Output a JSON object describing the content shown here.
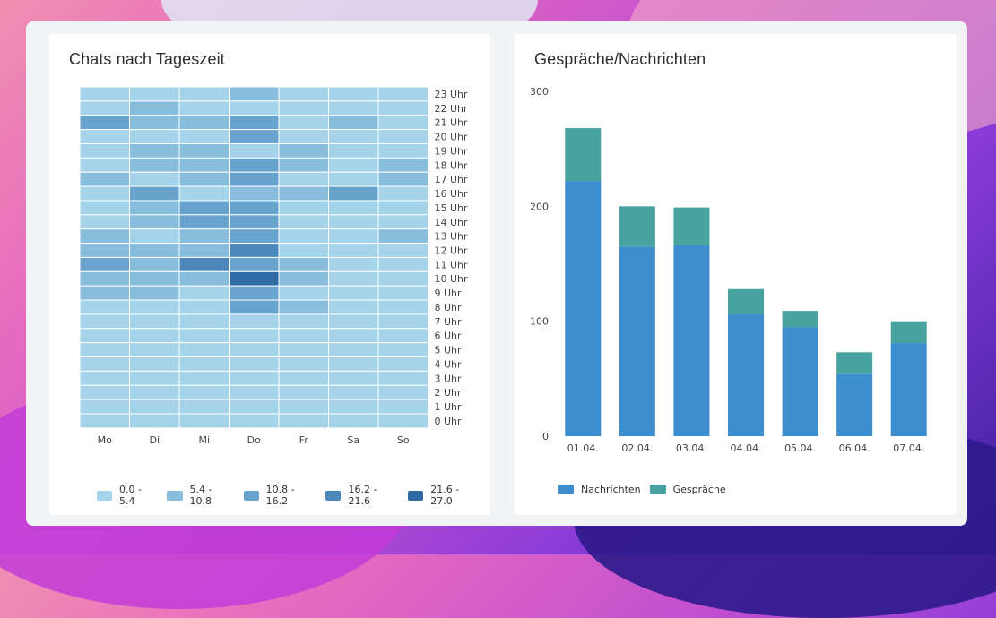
{
  "heatmap": {
    "title": "Chats nach Tageszeit",
    "days": [
      "Mo",
      "Di",
      "Mi",
      "Do",
      "Fr",
      "Sa",
      "So"
    ],
    "hours": [
      "23 Uhr",
      "22 Uhr",
      "21 Uhr",
      "20 Uhr",
      "19 Uhr",
      "18 Uhr",
      "17 Uhr",
      "16 Uhr",
      "15 Uhr",
      "14 Uhr",
      "13 Uhr",
      "12 Uhr",
      "11 Uhr",
      "10 Uhr",
      "9 Uhr",
      "8 Uhr",
      "7 Uhr",
      "6 Uhr",
      "5 Uhr",
      "4 Uhr",
      "3 Uhr",
      "2 Uhr",
      "1 Uhr",
      "0 Uhr"
    ],
    "legend": [
      {
        "label": "0.0 - 5.4",
        "color": "#a5d4ea"
      },
      {
        "label": "5.4 - 10.8",
        "color": "#88bddc"
      },
      {
        "label": "10.8 - 16.2",
        "color": "#67a3cc"
      },
      {
        "label": "16.2 - 21.6",
        "color": "#4b88b9"
      },
      {
        "label": "21.6 - 27.0",
        "color": "#2e6aa4"
      }
    ]
  },
  "bars": {
    "title": "Gespräche/Nachrichten",
    "legend": [
      {
        "label": "Nachrichten",
        "color": "#3d8ecf"
      },
      {
        "label": "Gespräche",
        "color": "#48a2a0"
      }
    ]
  },
  "chart_data": [
    {
      "type": "heatmap",
      "title": "Chats nach Tageszeit",
      "x": [
        "Mo",
        "Di",
        "Mi",
        "Do",
        "Fr",
        "Sa",
        "So"
      ],
      "y": [
        "23 Uhr",
        "22 Uhr",
        "21 Uhr",
        "20 Uhr",
        "19 Uhr",
        "18 Uhr",
        "17 Uhr",
        "16 Uhr",
        "15 Uhr",
        "14 Uhr",
        "13 Uhr",
        "12 Uhr",
        "11 Uhr",
        "10 Uhr",
        "9 Uhr",
        "8 Uhr",
        "7 Uhr",
        "6 Uhr",
        "5 Uhr",
        "4 Uhr",
        "3 Uhr",
        "2 Uhr",
        "1 Uhr",
        "0 Uhr"
      ],
      "value_range": [
        0,
        27
      ],
      "legend": [
        "0.0 - 5.4",
        "5.4 - 10.8",
        "10.8 - 16.2",
        "16.2 - 21.6",
        "21.6 - 27.0"
      ],
      "values": [
        [
          3,
          3,
          3,
          8,
          3,
          3,
          3
        ],
        [
          3,
          8,
          3,
          3,
          3,
          3,
          3
        ],
        [
          13,
          8,
          8,
          13,
          3,
          8,
          3
        ],
        [
          3,
          3,
          3,
          13,
          3,
          3,
          3
        ],
        [
          3,
          8,
          8,
          3,
          8,
          3,
          3
        ],
        [
          3,
          8,
          8,
          13,
          8,
          3,
          8
        ],
        [
          8,
          3,
          8,
          13,
          3,
          3,
          8
        ],
        [
          3,
          13,
          3,
          8,
          8,
          13,
          3
        ],
        [
          3,
          8,
          13,
          13,
          3,
          3,
          3
        ],
        [
          3,
          8,
          13,
          13,
          3,
          3,
          3
        ],
        [
          8,
          3,
          8,
          13,
          3,
          3,
          8
        ],
        [
          8,
          8,
          8,
          19,
          3,
          3,
          3
        ],
        [
          13,
          8,
          19,
          13,
          8,
          3,
          3
        ],
        [
          8,
          8,
          8,
          25,
          8,
          3,
          3
        ],
        [
          8,
          8,
          3,
          13,
          3,
          3,
          3
        ],
        [
          3,
          3,
          3,
          13,
          8,
          3,
          3
        ],
        [
          3,
          3,
          3,
          3,
          3,
          3,
          3
        ],
        [
          3,
          3,
          3,
          3,
          3,
          3,
          3
        ],
        [
          3,
          3,
          3,
          3,
          3,
          3,
          3
        ],
        [
          3,
          3,
          3,
          3,
          3,
          3,
          3
        ],
        [
          3,
          3,
          3,
          3,
          3,
          3,
          3
        ],
        [
          3,
          3,
          3,
          3,
          3,
          3,
          3
        ],
        [
          3,
          3,
          3,
          3,
          3,
          3,
          3
        ],
        [
          3,
          3,
          3,
          3,
          3,
          3,
          3
        ]
      ]
    },
    {
      "type": "bar",
      "stacked": true,
      "title": "Gespräche/Nachrichten",
      "categories": [
        "01.04.",
        "02.04.",
        "03.04.",
        "04.04.",
        "05.04.",
        "06.04.",
        "07.04."
      ],
      "series": [
        {
          "name": "Nachrichten",
          "values": [
            222,
            165,
            166,
            106,
            95,
            54,
            81
          ]
        },
        {
          "name": "Gespräche",
          "values": [
            46,
            35,
            33,
            22,
            14,
            19,
            19
          ]
        }
      ],
      "ylim": [
        0,
        300
      ],
      "yticks": [
        0,
        100,
        200,
        300
      ],
      "legend_position": "bottom-left"
    }
  ]
}
